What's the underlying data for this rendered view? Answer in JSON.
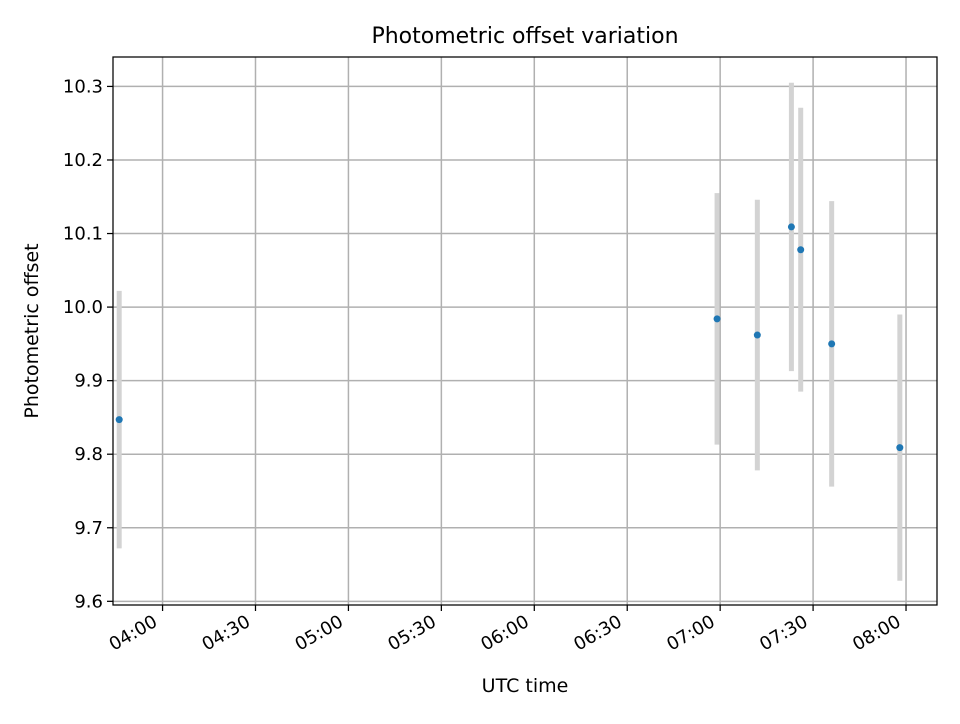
{
  "chart_data": {
    "type": "scatter",
    "title": "Photometric offset variation",
    "xlabel": "UTC time",
    "ylabel": "Photometric offset",
    "xlim": [
      "03:44",
      "08:10"
    ],
    "ylim": [
      9.595,
      10.34
    ],
    "x_ticks": [
      "04:00",
      "04:30",
      "05:00",
      "05:30",
      "06:00",
      "06:30",
      "07:00",
      "07:30",
      "08:00"
    ],
    "y_ticks": [
      9.6,
      9.7,
      9.8,
      9.9,
      10.0,
      10.1,
      10.2,
      10.3
    ],
    "y_tick_labels": [
      "9.6",
      "9.7",
      "9.8",
      "9.9",
      "10.0",
      "10.1",
      "10.2",
      "10.3"
    ],
    "grid": true,
    "legend": "none",
    "marker_color": "#1f77b4",
    "errorbar_color": "#d3d3d3",
    "points": [
      {
        "x": "03:46",
        "y": 9.847,
        "err": 0.175
      },
      {
        "x": "06:59",
        "y": 9.984,
        "err": 0.171
      },
      {
        "x": "07:12",
        "y": 9.962,
        "err": 0.184
      },
      {
        "x": "07:23",
        "y": 10.109,
        "err": 0.196
      },
      {
        "x": "07:26",
        "y": 10.078,
        "err": 0.193
      },
      {
        "x": "07:36",
        "y": 9.95,
        "err": 0.194
      },
      {
        "x": "07:58",
        "y": 9.809,
        "err": 0.181
      }
    ]
  }
}
